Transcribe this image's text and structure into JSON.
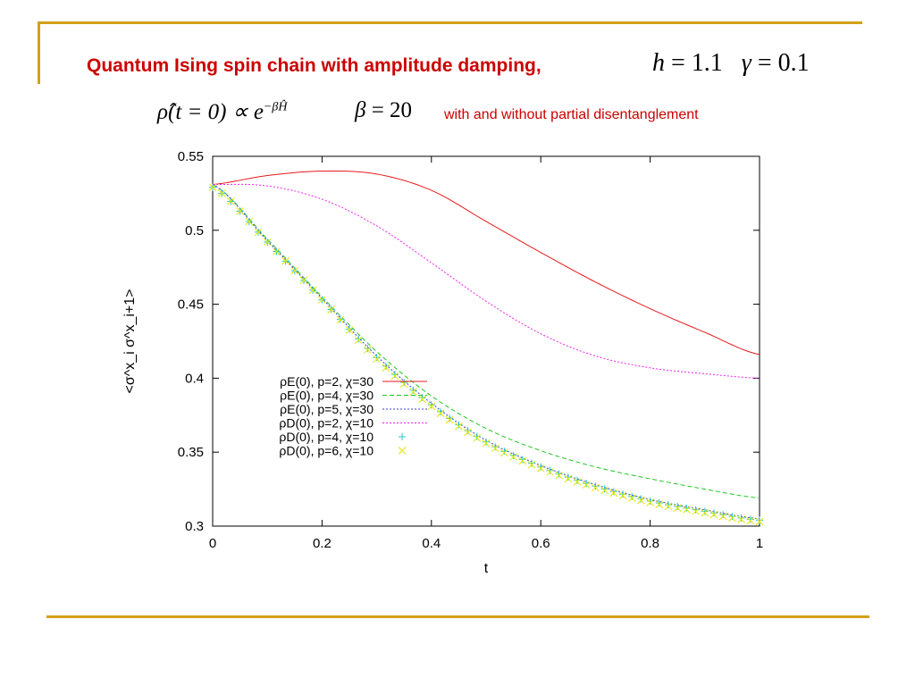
{
  "slide": {
    "title": "Quantum Ising spin chain with amplitude damping,",
    "eq_h_left": "h",
    "eq_h_right": "= 1.1",
    "eq_gamma_left": "γ",
    "eq_gamma_right": "= 0.1",
    "eq_rho": "ρ̂(t = 0) ∝ e",
    "eq_rho_exp": "−βĤ",
    "eq_beta_left": "β",
    "eq_beta_right": "= 20",
    "subtitle": "with and without partial disentanglement",
    "accent_color": "#d4a017",
    "title_color": "#cc0000"
  },
  "chart_data": {
    "type": "line",
    "xlabel": "t",
    "ylabel": "<σ^x_i σ^x_i+1>",
    "xlim": [
      0,
      1
    ],
    "ylim": [
      0.3,
      0.55
    ],
    "xticks": [
      "0",
      "0.2",
      "0.4",
      "0.6",
      "0.8",
      "1"
    ],
    "yticks": [
      "0.3",
      "0.35",
      "0.4",
      "0.45",
      "0.5",
      "0.55"
    ],
    "legend_position": "left-center",
    "x": [
      0,
      0.1,
      0.2,
      0.3,
      0.4,
      0.5,
      0.6,
      0.7,
      0.8,
      0.9,
      1.0
    ],
    "series": [
      {
        "name": "ρE(0), p=2, χ=30",
        "color": "#e41a1c",
        "style": "solid",
        "values": [
          0.531,
          0.537,
          0.54,
          0.538,
          0.527,
          0.506,
          0.485,
          0.465,
          0.447,
          0.431,
          0.416
        ]
      },
      {
        "name": "ρE(0), p=4, χ=30",
        "color": "#1ec81e",
        "style": "dashed",
        "values": [
          0.531,
          0.494,
          0.455,
          0.418,
          0.388,
          0.366,
          0.351,
          0.34,
          0.332,
          0.325,
          0.319
        ]
      },
      {
        "name": "ρE(0), p=5, χ=30",
        "color": "#4040d0",
        "style": "dotted",
        "values": [
          0.531,
          0.493,
          0.454,
          0.415,
          0.383,
          0.358,
          0.341,
          0.328,
          0.318,
          0.311,
          0.305
        ]
      },
      {
        "name": "ρD(0), p=2, χ=10",
        "color": "#ee22ee",
        "style": "dotted",
        "values": [
          0.531,
          0.53,
          0.521,
          0.503,
          0.478,
          0.452,
          0.43,
          0.415,
          0.407,
          0.403,
          0.4
        ]
      },
      {
        "name": "ρD(0), p=4, χ=10",
        "color": "#22cccc",
        "style": "plus",
        "values": [
          0.529,
          0.492,
          0.453,
          0.414,
          0.382,
          0.357,
          0.34,
          0.327,
          0.317,
          0.31,
          0.304
        ]
      },
      {
        "name": "ρD(0), p=6, χ=10",
        "color": "#e6e600",
        "style": "cross",
        "values": [
          0.529,
          0.492,
          0.453,
          0.413,
          0.381,
          0.356,
          0.339,
          0.326,
          0.316,
          0.309,
          0.303
        ]
      }
    ]
  }
}
